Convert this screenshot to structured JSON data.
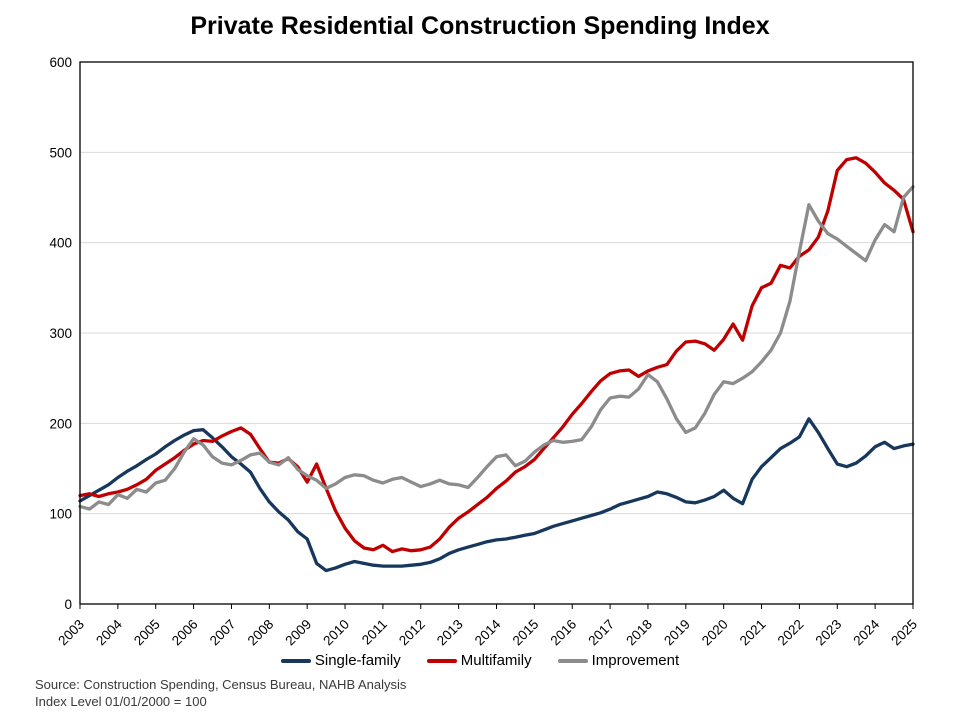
{
  "page": {
    "title": "Private Residential Construction Spending Index",
    "source_line1": "Source: Construction Spending, Census Bureau, NAHB Analysis",
    "source_line2": "Index Level 01/01/2000 = 100"
  },
  "colors": {
    "grid": "#D9D9D9",
    "axis": "#000000",
    "text": "#000000",
    "source_text": "#3A3A3A",
    "single_family": "#17375D",
    "multifamily": "#C00000",
    "improvement": "#8C8C8C"
  },
  "chart_data": {
    "type": "line",
    "title": "Private Residential Construction Spending Index",
    "xlabel": "",
    "ylabel": "",
    "axis_note": "Index Level 01/01/2000 = 100",
    "grid": "horizontal",
    "legend_position": "bottom",
    "x_start": 2003,
    "x_step": 0.25,
    "x_end": 2025,
    "x_tick_labels": [
      "2003",
      "2004",
      "2005",
      "2006",
      "2007",
      "2008",
      "2009",
      "2010",
      "2011",
      "2012",
      "2013",
      "2014",
      "2015",
      "2016",
      "2017",
      "2018",
      "2019",
      "2020",
      "2021",
      "2022",
      "2023",
      "2024",
      "2025"
    ],
    "ylim": [
      0,
      600
    ],
    "yticks": [
      0,
      100,
      200,
      300,
      400,
      500,
      600
    ],
    "series": [
      {
        "name": "Single-family",
        "color": "#17375D",
        "values": [
          114,
          120,
          126,
          132,
          140,
          147,
          153,
          160,
          166,
          174,
          181,
          187,
          192,
          193,
          184,
          174,
          163,
          155,
          146,
          128,
          113,
          102,
          93,
          80,
          72,
          45,
          37,
          40,
          44,
          47,
          45,
          43,
          42,
          42,
          42,
          43,
          44,
          46,
          50,
          56,
          60,
          63,
          66,
          69,
          71,
          72,
          74,
          76,
          78,
          82,
          86,
          89,
          92,
          95,
          98,
          101,
          105,
          110,
          113,
          116,
          119,
          124,
          122,
          118,
          113,
          112,
          115,
          119,
          126,
          117,
          111,
          138,
          152,
          162,
          172,
          178,
          185,
          205,
          190,
          172,
          155,
          152,
          156,
          164,
          174,
          179,
          172,
          175,
          177
        ]
      },
      {
        "name": "Multifamily",
        "color": "#C00000",
        "values": [
          120,
          122,
          119,
          122,
          124,
          127,
          132,
          138,
          148,
          155,
          162,
          170,
          177,
          181,
          180,
          186,
          191,
          195,
          188,
          172,
          157,
          156,
          161,
          152,
          135,
          155,
          128,
          103,
          84,
          70,
          62,
          60,
          65,
          58,
          61,
          59,
          60,
          63,
          72,
          85,
          95,
          102,
          110,
          118,
          128,
          136,
          146,
          152,
          160,
          172,
          184,
          196,
          210,
          222,
          235,
          247,
          255,
          258,
          259,
          252,
          258,
          262,
          265,
          280,
          290,
          291,
          288,
          281,
          293,
          310,
          292,
          330,
          350,
          355,
          375,
          372,
          385,
          392,
          406,
          435,
          480,
          492,
          494,
          488,
          478,
          466,
          458,
          448,
          412
        ]
      },
      {
        "name": "Improvement",
        "color": "#8C8C8C",
        "values": [
          108,
          105,
          113,
          110,
          121,
          117,
          127,
          124,
          134,
          137,
          150,
          168,
          183,
          176,
          163,
          156,
          154,
          159,
          165,
          167,
          157,
          154,
          162,
          149,
          142,
          137,
          128,
          133,
          140,
          143,
          142,
          137,
          134,
          138,
          140,
          135,
          130,
          133,
          137,
          133,
          132,
          129,
          140,
          152,
          163,
          165,
          153,
          158,
          168,
          176,
          181,
          179,
          180,
          182,
          196,
          215,
          228,
          230,
          229,
          238,
          254,
          246,
          227,
          205,
          190,
          195,
          211,
          232,
          246,
          244,
          250,
          257,
          268,
          281,
          300,
          335,
          390,
          442,
          424,
          410,
          404,
          396,
          388,
          380,
          403,
          420,
          412,
          450,
          462
        ]
      }
    ]
  }
}
